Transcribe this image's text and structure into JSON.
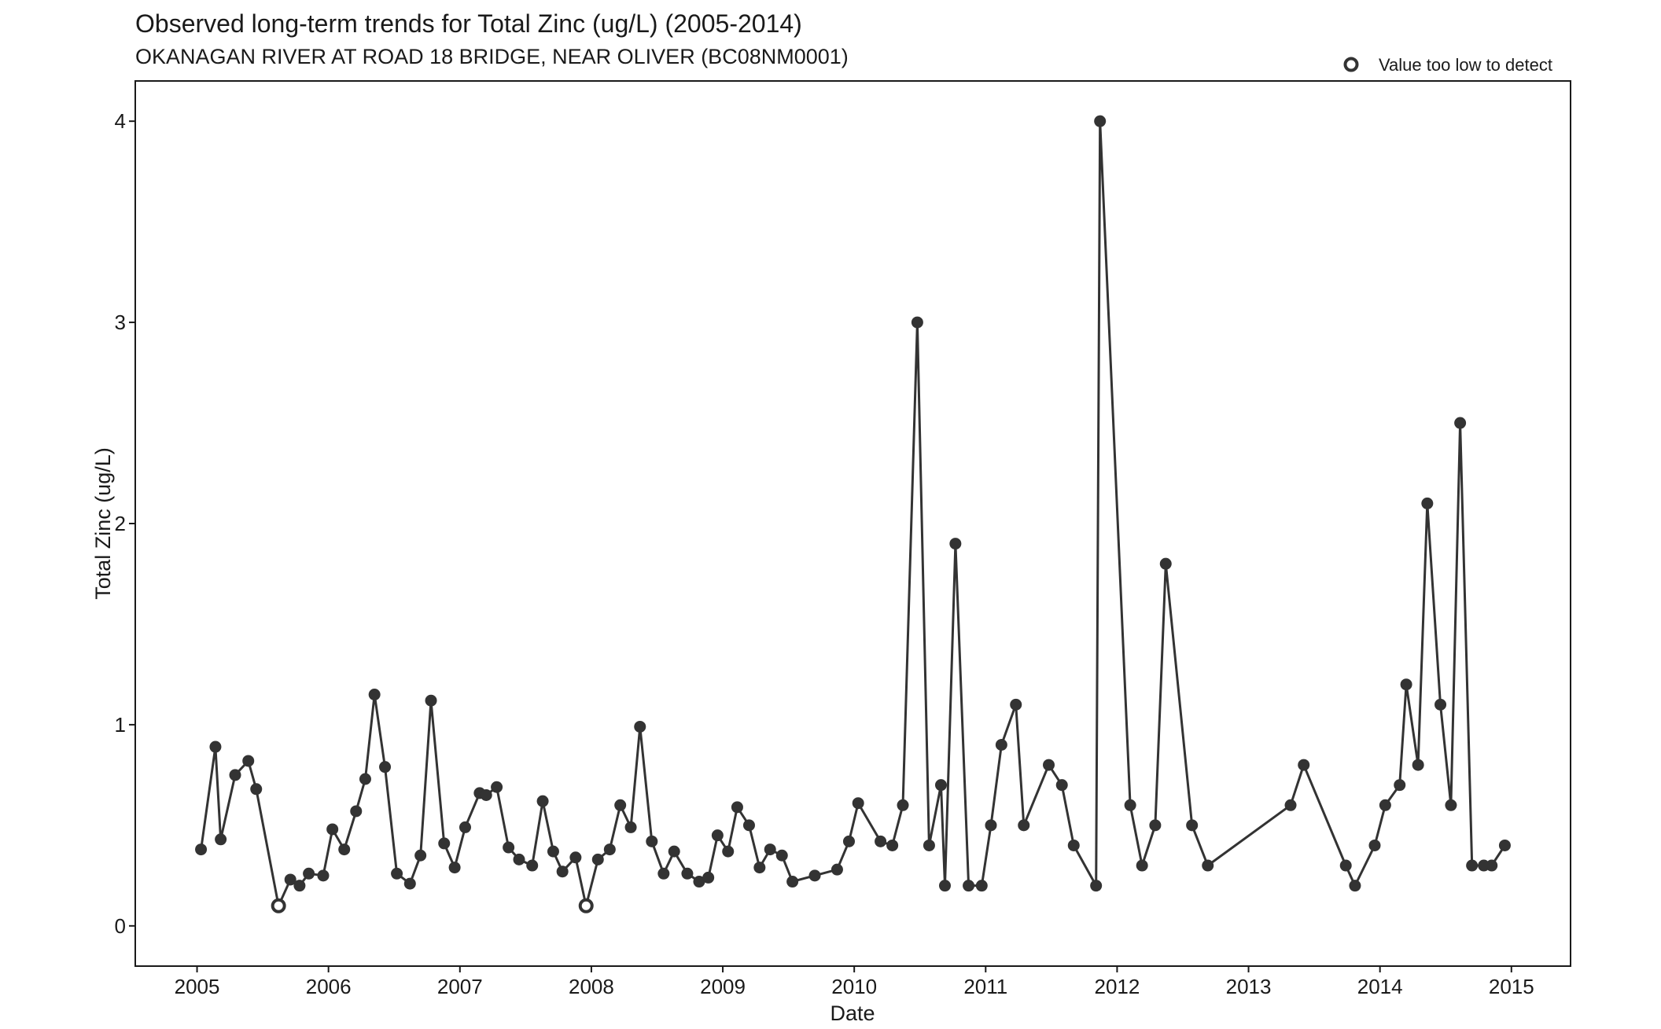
{
  "chart_data": {
    "type": "line",
    "title": "Observed long-term trends for Total Zinc (ug/L) (2005-2014)",
    "subtitle": "OKANAGAN RIVER AT ROAD 18 BRIDGE, NEAR OLIVER (BC08NM0001)",
    "xlabel": "Date",
    "ylabel": "Total Zinc (ug/L)",
    "xlim": [
      2004.53,
      2015.45
    ],
    "ylim": [
      -0.2,
      4.2
    ],
    "x_ticks": [
      "2005",
      "2006",
      "2007",
      "2008",
      "2009",
      "2010",
      "2011",
      "2012",
      "2013",
      "2014",
      "2015"
    ],
    "y_ticks": [
      "0",
      "1",
      "2",
      "3",
      "4"
    ],
    "grid": false,
    "legend": {
      "position": "top-right",
      "label": "Value too low to detect"
    },
    "line_color": "#333333",
    "series": [
      {
        "x": [
          2005.03,
          2005.14,
          2005.18,
          2005.29,
          2005.39,
          2005.45,
          2005.62,
          2005.71,
          2005.78,
          2005.85,
          2005.96,
          2006.03,
          2006.12,
          2006.21,
          2006.28,
          2006.35,
          2006.43,
          2006.52,
          2006.62,
          2006.7,
          2006.78,
          2006.88,
          2006.96,
          2007.04,
          2007.15,
          2007.2,
          2007.28,
          2007.37,
          2007.45,
          2007.55,
          2007.63,
          2007.71,
          2007.78,
          2007.88,
          2007.96,
          2008.05,
          2008.14,
          2008.22,
          2008.3,
          2008.37,
          2008.46,
          2008.55,
          2008.63,
          2008.73,
          2008.82,
          2008.89,
          2008.96,
          2009.04,
          2009.11,
          2009.2,
          2009.28,
          2009.36,
          2009.45,
          2009.53,
          2009.7,
          2009.87,
          2009.96,
          2010.03,
          2010.2,
          2010.29,
          2010.37,
          2010.48,
          2010.57,
          2010.66,
          2010.69,
          2010.77,
          2010.87,
          2010.97,
          2011.04,
          2011.12,
          2011.23,
          2011.29,
          2011.48,
          2011.58,
          2011.67,
          2011.84,
          2011.87,
          2012.1,
          2012.19,
          2012.29,
          2012.37,
          2012.57,
          2012.69,
          2013.32,
          2013.42,
          2013.74,
          2013.81,
          2013.96,
          2014.04,
          2014.15,
          2014.2,
          2014.29,
          2014.36,
          2014.46,
          2014.54,
          2014.61,
          2014.7,
          2014.79,
          2014.85,
          2014.95
        ],
        "y": [
          0.38,
          0.89,
          0.43,
          0.75,
          0.82,
          0.68,
          0.1,
          0.23,
          0.2,
          0.26,
          0.25,
          0.48,
          0.38,
          0.57,
          0.73,
          1.15,
          0.79,
          0.26,
          0.21,
          0.35,
          1.12,
          0.41,
          0.29,
          0.49,
          0.66,
          0.65,
          0.69,
          0.39,
          0.33,
          0.3,
          0.62,
          0.37,
          0.27,
          0.34,
          0.1,
          0.33,
          0.38,
          0.6,
          0.49,
          0.99,
          0.42,
          0.26,
          0.37,
          0.26,
          0.22,
          0.24,
          0.45,
          0.37,
          0.59,
          0.5,
          0.29,
          0.38,
          0.35,
          0.22,
          0.25,
          0.28,
          0.42,
          0.61,
          0.42,
          0.4,
          0.6,
          3.0,
          0.4,
          0.7,
          0.2,
          1.9,
          0.2,
          0.2,
          0.5,
          0.9,
          1.1,
          0.5,
          0.8,
          0.7,
          0.4,
          0.2,
          4.0,
          0.6,
          0.3,
          0.5,
          1.8,
          0.5,
          0.3,
          0.6,
          0.8,
          0.3,
          0.2,
          0.4,
          0.6,
          0.7,
          1.2,
          0.8,
          2.1,
          1.1,
          0.6,
          2.5,
          0.3,
          0.3,
          0.3,
          0.4
        ],
        "below_detection_index": [
          6,
          34
        ]
      }
    ]
  }
}
